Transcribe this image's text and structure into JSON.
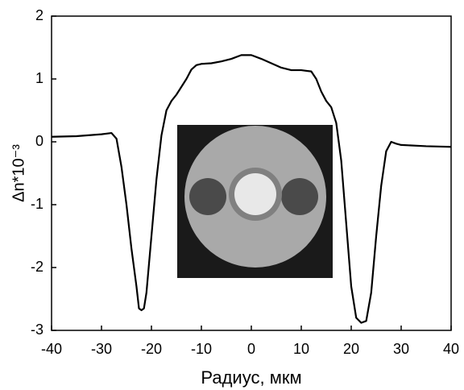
{
  "chart_data": {
    "type": "line",
    "xlabel": "Радиус, мкм",
    "ylabel": "Δn*10⁻³",
    "xlim": [
      -40,
      40
    ],
    "xticks": [
      -40,
      -30,
      -20,
      -10,
      0,
      10,
      20,
      30,
      40
    ],
    "ylim": [
      -3,
      2
    ],
    "yticks": [
      -3,
      -2,
      -1,
      0,
      1,
      2
    ],
    "series": [
      {
        "color": "#000000",
        "x": [
          -40,
          -35,
          -30,
          -28,
          -27,
          -26,
          -25,
          -24,
          -23,
          -22.5,
          -22,
          -21.5,
          -21,
          -20,
          -19,
          -18,
          -17,
          -16,
          -15,
          -13,
          -12,
          -11,
          -10,
          -8,
          -6,
          -4,
          -2,
          0,
          2,
          4,
          6,
          8,
          10,
          12,
          13,
          14,
          15,
          16,
          17,
          18,
          19,
          20,
          21,
          22,
          23,
          24,
          25,
          26,
          27,
          28,
          29,
          30,
          35,
          40
        ],
        "values": [
          0.08,
          0.09,
          0.12,
          0.14,
          0.05,
          -0.4,
          -1.0,
          -1.7,
          -2.3,
          -2.65,
          -2.68,
          -2.65,
          -2.4,
          -1.5,
          -0.6,
          0.1,
          0.5,
          0.65,
          0.75,
          1.0,
          1.15,
          1.22,
          1.24,
          1.25,
          1.28,
          1.32,
          1.38,
          1.38,
          1.32,
          1.25,
          1.18,
          1.14,
          1.14,
          1.12,
          1.0,
          0.8,
          0.65,
          0.55,
          0.3,
          -0.3,
          -1.3,
          -2.3,
          -2.8,
          -2.88,
          -2.85,
          -2.4,
          -1.5,
          -0.7,
          -0.15,
          0.0,
          -0.03,
          -0.05,
          -0.07,
          -0.08
        ]
      }
    ]
  }
}
